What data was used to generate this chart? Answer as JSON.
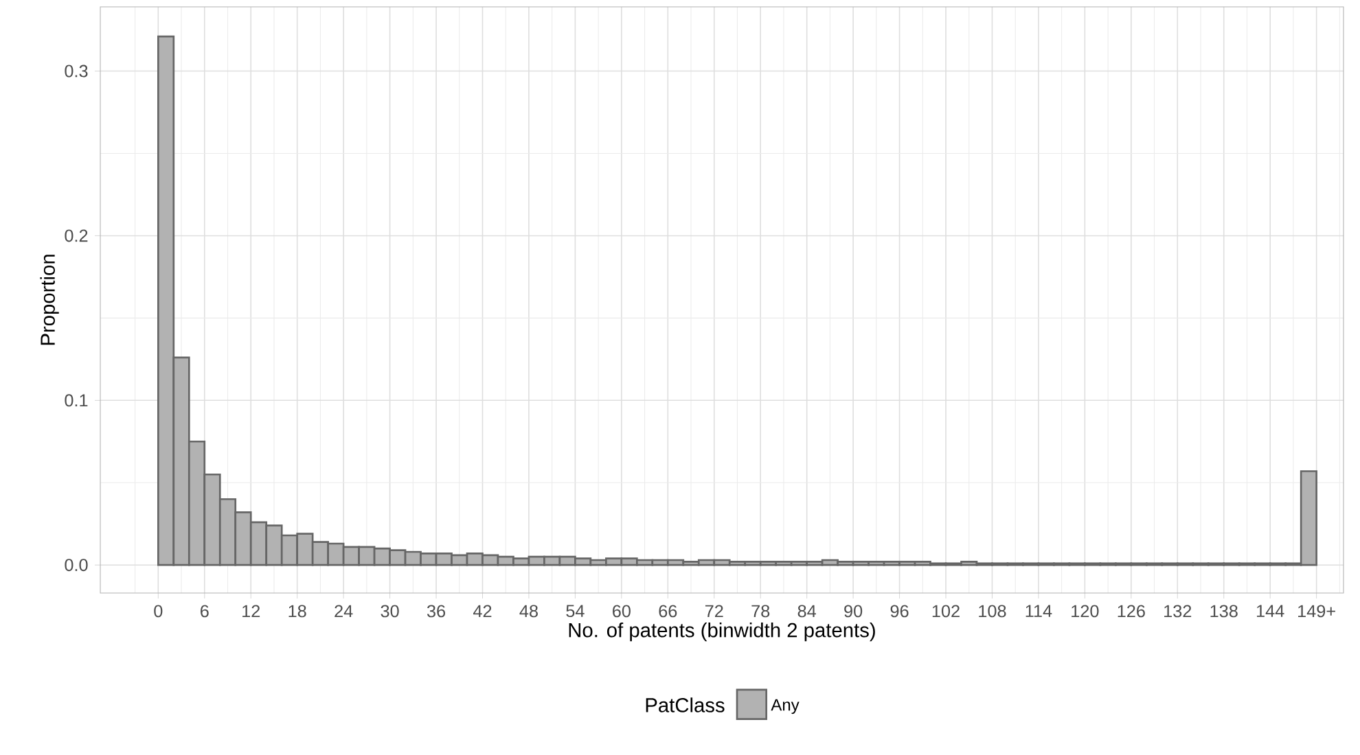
{
  "chart_data": {
    "type": "histogram",
    "xlabel": "No. of patents (binwidth 2 patents)",
    "ylabel": "Proportion",
    "legend_title": "PatClass",
    "series": [
      {
        "name": "Any",
        "color": "#b2b2b2",
        "values": [
          0.321,
          0.126,
          0.075,
          0.055,
          0.04,
          0.032,
          0.026,
          0.024,
          0.018,
          0.019,
          0.014,
          0.013,
          0.011,
          0.011,
          0.01,
          0.009,
          0.008,
          0.007,
          0.007,
          0.006,
          0.007,
          0.006,
          0.005,
          0.004,
          0.005,
          0.005,
          0.005,
          0.004,
          0.003,
          0.004,
          0.004,
          0.003,
          0.003,
          0.003,
          0.002,
          0.003,
          0.003,
          0.002,
          0.002,
          0.002,
          0.002,
          0.002,
          0.002,
          0.003,
          0.002,
          0.002,
          0.002,
          0.002,
          0.002,
          0.002,
          0.001,
          0.001,
          0.002,
          0.001,
          0.001,
          0.001,
          0.001,
          0.001,
          0.001,
          0.001,
          0.001,
          0.001,
          0.001,
          0.001,
          0.001,
          0.001,
          0.001,
          0.001,
          0.001,
          0.001,
          0.001,
          0.001,
          0.001,
          0.001,
          0.057
        ]
      }
    ],
    "bins": [
      0,
      2,
      4,
      6,
      8,
      10,
      12,
      14,
      16,
      18,
      20,
      22,
      24,
      26,
      28,
      30,
      32,
      34,
      36,
      38,
      40,
      42,
      44,
      46,
      48,
      50,
      52,
      54,
      56,
      58,
      60,
      62,
      64,
      66,
      68,
      70,
      72,
      74,
      76,
      78,
      80,
      82,
      84,
      86,
      88,
      90,
      92,
      94,
      96,
      98,
      100,
      102,
      104,
      106,
      108,
      110,
      112,
      114,
      116,
      118,
      120,
      122,
      124,
      126,
      128,
      130,
      132,
      134,
      136,
      138,
      140,
      142,
      144,
      146,
      148,
      150
    ],
    "xlim": [
      -7.5,
      153.5
    ],
    "ylim": [
      -0.017,
      0.339
    ],
    "xticks": [
      0,
      6,
      12,
      18,
      24,
      30,
      36,
      42,
      48,
      54,
      60,
      66,
      72,
      78,
      84,
      90,
      96,
      102,
      108,
      114,
      120,
      126,
      132,
      138,
      144,
      {
        "value": 150,
        "label": "149+"
      }
    ],
    "yticks": [
      {
        "value": 0,
        "label": "0.0"
      },
      0.1,
      0.2,
      0.3
    ],
    "grid": true,
    "legend": "bottom"
  }
}
